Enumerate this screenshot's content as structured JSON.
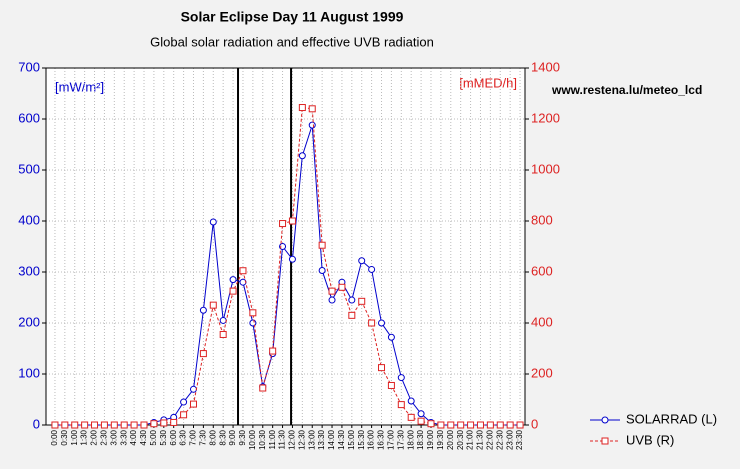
{
  "chart_data": {
    "type": "line",
    "title": "Solar Eclipse Day 11 August 1999",
    "subtitle": "Global solar radiation and effective UVB radiation",
    "y_label": "[mW/m²]",
    "y2_label": "[mMED/h]",
    "annotation": "www.restena.lu/meteo_lcd",
    "categories": [
      "0:00",
      "0:30",
      "1:00",
      "1:30",
      "2:00",
      "2:30",
      "3:00",
      "3:30",
      "4:00",
      "4:30",
      "5:00",
      "5:30",
      "6:00",
      "6:30",
      "7:00",
      "7:30",
      "8:00",
      "8:30",
      "9:00",
      "9:30",
      "10:00",
      "10:30",
      "11:00",
      "11:30",
      "12:00",
      "12:30",
      "13:00",
      "13:30",
      "14:00",
      "14:30",
      "15:00",
      "15:30",
      "16:00",
      "16:30",
      "17:00",
      "17:30",
      "18:00",
      "18:30",
      "19:00",
      "19:30",
      "20:00",
      "20:30",
      "21:00",
      "21:30",
      "22:00",
      "22:30",
      "23:00",
      "23:30"
    ],
    "series": [
      {
        "name": "SOLARRAD (L)",
        "color": "#0000cc",
        "marker": "circle",
        "dashed": false,
        "values": [
          0,
          0,
          0,
          0,
          0,
          0,
          0,
          0,
          0,
          0,
          5,
          10,
          15,
          45,
          70,
          225,
          398,
          205,
          285,
          280,
          200,
          75,
          140,
          350,
          325,
          528,
          588,
          303,
          245,
          280,
          245,
          322,
          305,
          200,
          172,
          93,
          47,
          22,
          5,
          0,
          0,
          0,
          0,
          0,
          0,
          0,
          0,
          0
        ]
      },
      {
        "name": "UVB (R)",
        "color": "#dd2222",
        "marker": "square",
        "dashed": true,
        "axis": "y2",
        "values": [
          0,
          0,
          0,
          0,
          0,
          0,
          0,
          0,
          0,
          0,
          5,
          8,
          10,
          40,
          82,
          280,
          470,
          355,
          525,
          605,
          440,
          145,
          290,
          790,
          800,
          1245,
          1240,
          705,
          525,
          540,
          430,
          485,
          400,
          225,
          155,
          80,
          30,
          15,
          5,
          0,
          0,
          0,
          0,
          0,
          0,
          0,
          0,
          0
        ]
      }
    ],
    "eclipse_lines_hours": [
      9.25,
      11.93
    ],
    "ylim": [
      0,
      700
    ],
    "yticks": [
      0,
      100,
      200,
      300,
      400,
      500,
      600,
      700
    ],
    "y2lim": [
      0,
      1400
    ],
    "y2ticks": [
      0,
      200,
      400,
      600,
      800,
      1000,
      1200,
      1400
    ],
    "grid": true,
    "legend": "bottom-right"
  }
}
